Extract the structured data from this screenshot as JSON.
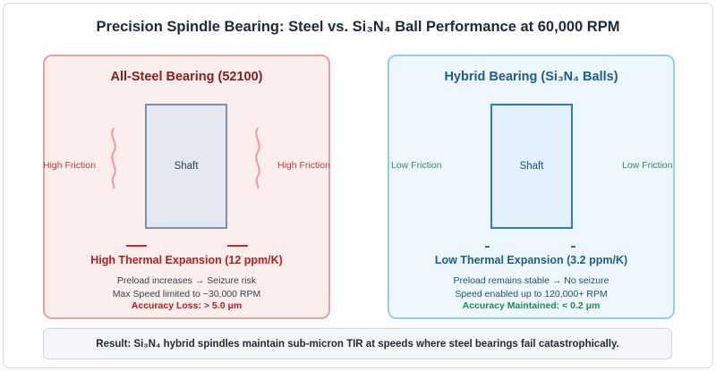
{
  "title": "Precision Spindle Bearing: Steel vs. Si₃N₄ Ball Performance at 60,000 RPM",
  "steel": {
    "title": "All-Steel Bearing (52100)",
    "shaft_label": "Shaft",
    "left_label": "High Friction",
    "right_label": "High Friction",
    "expansion": "High Thermal Expansion (12 ppm/K)",
    "preload": "Preload increases → Seizure risk",
    "speed": "Max Speed limited to ~30,000 RPM",
    "accuracy": "Accuracy Loss: > 5.0 μm"
  },
  "hybrid": {
    "title": "Hybrid Bearing (Si₃N₄ Balls)",
    "shaft_label": "Shaft",
    "left_label": "Low Friction",
    "right_label": "Low Friction",
    "expansion": "Low Thermal Expansion (3.2 ppm/K)",
    "preload": "Preload remains stable → No seizure",
    "speed": "Speed enabled up to 120,000+ RPM",
    "accuracy": "Accuracy Maintained: < 0.2 μm"
  },
  "result": "Result: Si₃N₄ hybrid spindles maintain sub-micron TIR at speeds where steel bearings fail catastrophically.",
  "colors": {
    "steel_accent": "#b91c1c",
    "hybrid_accent": "#1b5f8c",
    "hybrid_good": "#1f8a4c"
  }
}
